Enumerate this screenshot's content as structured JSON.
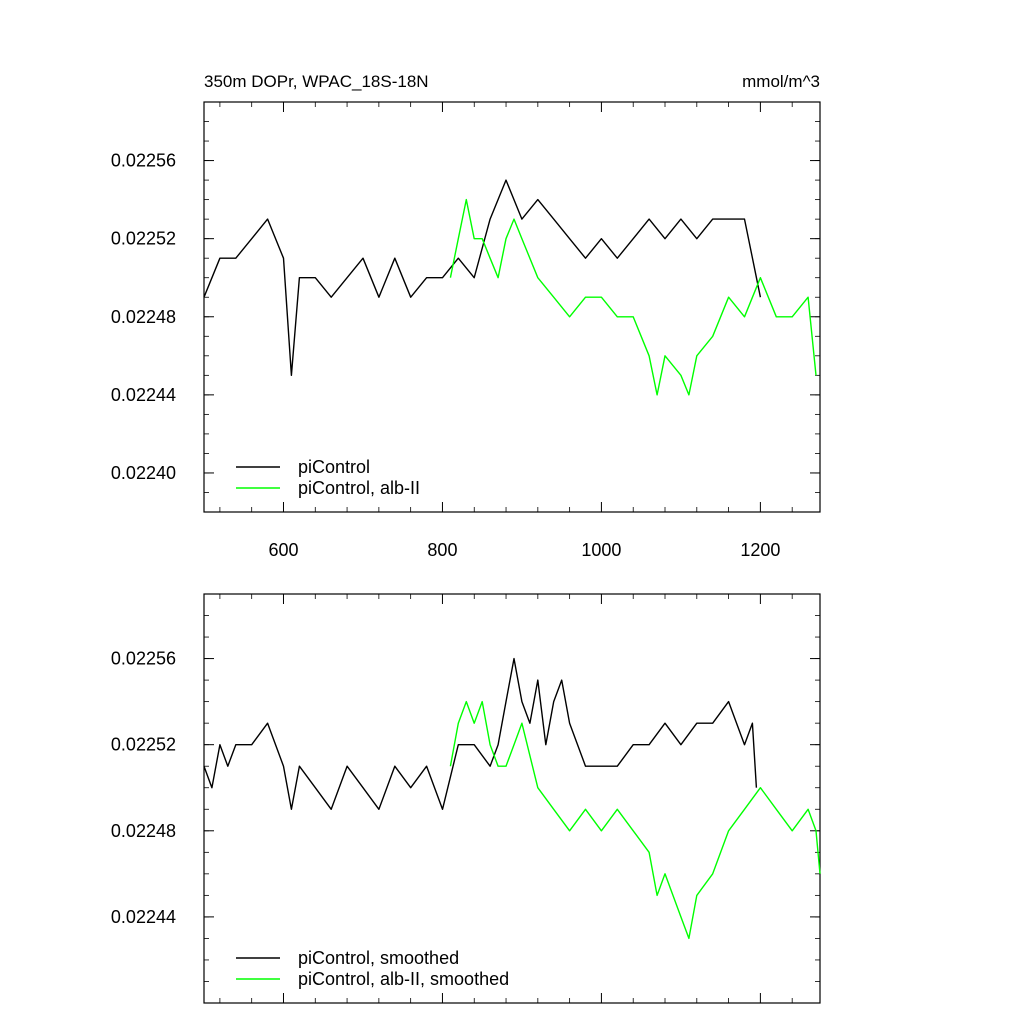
{
  "chart_data": [
    {
      "type": "line",
      "title": "350m DOPr, WPAC_18S-18N",
      "units": "mmol/m^3",
      "xlim": [
        500,
        1275
      ],
      "ylim": [
        0.02238,
        0.02259
      ],
      "x_ticks": [
        600,
        800,
        1000,
        1200
      ],
      "y_ticks": [
        0.0224,
        0.02244,
        0.02248,
        0.02252,
        0.02256
      ],
      "y_tick_labels": [
        "0.02240",
        "0.02244",
        "0.02248",
        "0.02252",
        "0.02256"
      ],
      "x_tick_labels": [
        "600",
        "800",
        "1000",
        "1200"
      ],
      "grid": false,
      "legend_position": "bottom-left",
      "series": [
        {
          "name": "piControl",
          "color": "#000000",
          "x": [
            500,
            520,
            540,
            560,
            580,
            600,
            610,
            620,
            640,
            660,
            680,
            700,
            720,
            740,
            760,
            780,
            800,
            820,
            840,
            860,
            880,
            900,
            920,
            940,
            960,
            980,
            1000,
            1020,
            1040,
            1060,
            1080,
            1100,
            1120,
            1140,
            1160,
            1180,
            1200
          ],
          "values": [
            0.02249,
            0.02251,
            0.02251,
            0.02252,
            0.02253,
            0.02251,
            0.02245,
            0.0225,
            0.0225,
            0.02249,
            0.0225,
            0.02251,
            0.02249,
            0.02251,
            0.02249,
            0.0225,
            0.0225,
            0.02251,
            0.0225,
            0.02253,
            0.02255,
            0.02253,
            0.02254,
            0.02253,
            0.02252,
            0.02251,
            0.02252,
            0.02251,
            0.02252,
            0.02253,
            0.02252,
            0.02253,
            0.02252,
            0.02253,
            0.02253,
            0.02253,
            0.02249
          ]
        },
        {
          "name": "piControl, alb-II",
          "color": "#00ff00",
          "x": [
            810,
            820,
            830,
            840,
            850,
            860,
            870,
            880,
            890,
            900,
            920,
            940,
            960,
            980,
            1000,
            1020,
            1040,
            1060,
            1070,
            1080,
            1100,
            1110,
            1120,
            1140,
            1160,
            1180,
            1200,
            1220,
            1240,
            1260,
            1270
          ],
          "values": [
            0.0225,
            0.02252,
            0.02254,
            0.02252,
            0.02252,
            0.02251,
            0.0225,
            0.02252,
            0.02253,
            0.02252,
            0.0225,
            0.02249,
            0.02248,
            0.02249,
            0.02249,
            0.02248,
            0.02248,
            0.02246,
            0.02244,
            0.02246,
            0.02245,
            0.02244,
            0.02246,
            0.02247,
            0.02249,
            0.02248,
            0.0225,
            0.02248,
            0.02248,
            0.02249,
            0.02245
          ]
        }
      ]
    },
    {
      "type": "line",
      "title": "",
      "xlim": [
        500,
        1275
      ],
      "ylim": [
        0.0224,
        0.02259
      ],
      "x_ticks": [
        600,
        800,
        1000,
        1200
      ],
      "y_ticks": [
        0.02244,
        0.02248,
        0.02252,
        0.02256
      ],
      "y_tick_labels": [
        "0.02244",
        "0.02248",
        "0.02252",
        "0.02256"
      ],
      "grid": false,
      "legend_position": "bottom-left",
      "series": [
        {
          "name": "piControl, smoothed",
          "color": "#000000",
          "x": [
            500,
            510,
            520,
            530,
            540,
            560,
            580,
            600,
            610,
            620,
            640,
            660,
            680,
            700,
            720,
            740,
            760,
            780,
            800,
            820,
            840,
            860,
            870,
            880,
            890,
            900,
            910,
            920,
            930,
            940,
            950,
            960,
            980,
            1000,
            1020,
            1040,
            1060,
            1080,
            1100,
            1120,
            1140,
            1160,
            1180,
            1190,
            1195
          ],
          "values": [
            0.02251,
            0.0225,
            0.02252,
            0.02251,
            0.02252,
            0.02252,
            0.02253,
            0.02251,
            0.02249,
            0.02251,
            0.0225,
            0.02249,
            0.02251,
            0.0225,
            0.02249,
            0.02251,
            0.0225,
            0.02251,
            0.02249,
            0.02252,
            0.02252,
            0.02251,
            0.02252,
            0.02254,
            0.02256,
            0.02254,
            0.02253,
            0.02255,
            0.02252,
            0.02254,
            0.02255,
            0.02253,
            0.02251,
            0.02251,
            0.02251,
            0.02252,
            0.02252,
            0.02253,
            0.02252,
            0.02253,
            0.02253,
            0.02254,
            0.02252,
            0.02253,
            0.0225
          ]
        },
        {
          "name": "piControl, alb-II, smoothed",
          "color": "#00ff00",
          "x": [
            810,
            820,
            830,
            840,
            850,
            860,
            870,
            880,
            890,
            900,
            920,
            940,
            960,
            980,
            1000,
            1020,
            1040,
            1060,
            1070,
            1080,
            1100,
            1110,
            1120,
            1140,
            1160,
            1180,
            1200,
            1220,
            1240,
            1260,
            1270,
            1275
          ],
          "values": [
            0.02251,
            0.02253,
            0.02254,
            0.02253,
            0.02254,
            0.02252,
            0.02251,
            0.02251,
            0.02252,
            0.02253,
            0.0225,
            0.02249,
            0.02248,
            0.02249,
            0.02248,
            0.02249,
            0.02248,
            0.02247,
            0.02245,
            0.02246,
            0.02244,
            0.02243,
            0.02245,
            0.02246,
            0.02248,
            0.02249,
            0.0225,
            0.02249,
            0.02248,
            0.02249,
            0.02248,
            0.02246
          ]
        }
      ]
    }
  ]
}
